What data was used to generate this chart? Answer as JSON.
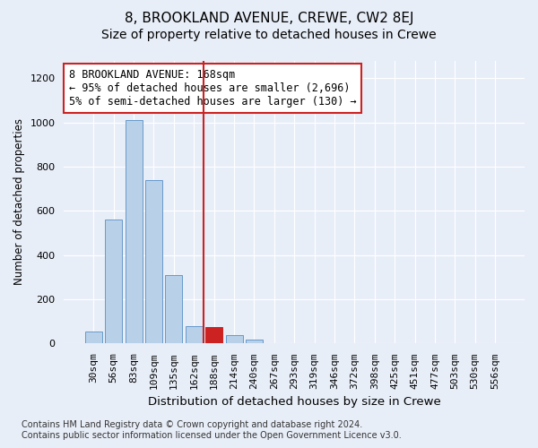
{
  "title": "8, BROOKLAND AVENUE, CREWE, CW2 8EJ",
  "subtitle": "Size of property relative to detached houses in Crewe",
  "xlabel": "Distribution of detached houses by size in Crewe",
  "ylabel": "Number of detached properties",
  "categories": [
    "30sqm",
    "56sqm",
    "83sqm",
    "109sqm",
    "135sqm",
    "162sqm",
    "188sqm",
    "214sqm",
    "240sqm",
    "267sqm",
    "293sqm",
    "319sqm",
    "346sqm",
    "372sqm",
    "398sqm",
    "425sqm",
    "451sqm",
    "477sqm",
    "503sqm",
    "530sqm",
    "556sqm"
  ],
  "values": [
    55,
    560,
    1010,
    740,
    310,
    80,
    75,
    40,
    18,
    3,
    0,
    0,
    0,
    0,
    0,
    0,
    0,
    0,
    0,
    0,
    0
  ],
  "bar_color": "#b8d0e8",
  "bar_edge_color": "#6699cc",
  "highlight_bar_index": 6,
  "highlight_bar_color": "#cc2222",
  "highlight_bar_edge_color": "#cc2222",
  "vline_color": "#cc2222",
  "vline_x": 5.5,
  "annotation_text": "8 BROOKLAND AVENUE: 168sqm\n← 95% of detached houses are smaller (2,696)\n5% of semi-detached houses are larger (130) →",
  "annotation_box_color": "#ffffff",
  "annotation_box_edge": "#cc2222",
  "ylim": [
    0,
    1280
  ],
  "yticks": [
    0,
    200,
    400,
    600,
    800,
    1000,
    1200
  ],
  "footer_line1": "Contains HM Land Registry data © Crown copyright and database right 2024.",
  "footer_line2": "Contains public sector information licensed under the Open Government Licence v3.0.",
  "bg_color": "#e8eef8",
  "plot_bg_color": "#e8eef8",
  "grid_color": "#ffffff",
  "title_fontsize": 11,
  "subtitle_fontsize": 10,
  "xlabel_fontsize": 9.5,
  "ylabel_fontsize": 8.5,
  "tick_fontsize": 8,
  "footer_fontsize": 7
}
